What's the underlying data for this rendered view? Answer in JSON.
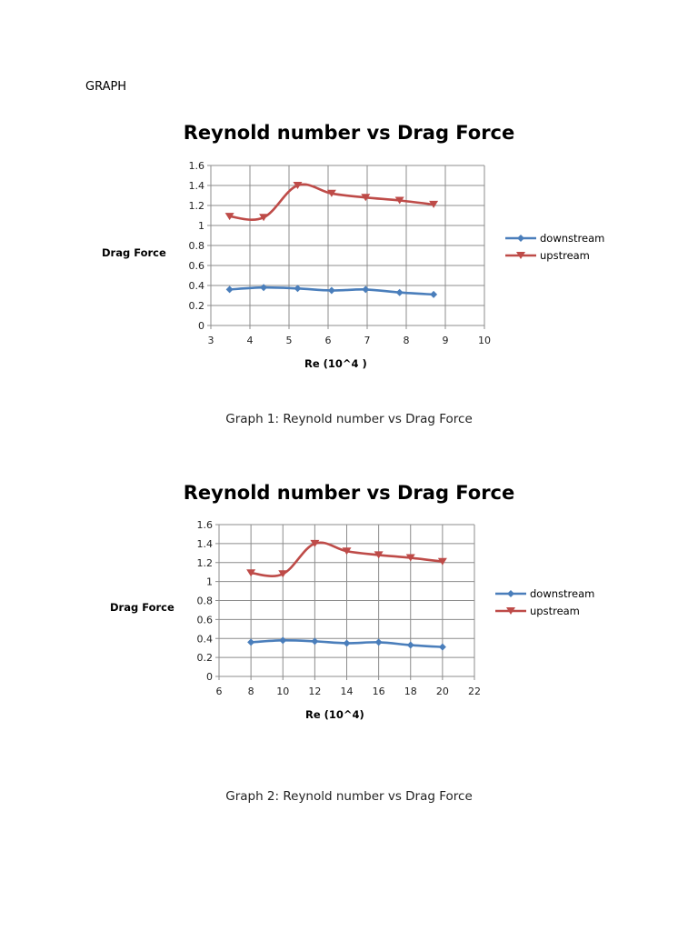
{
  "document": {
    "heading": "GRAPH"
  },
  "charts": [
    {
      "title": "Reynold number vs Drag Force",
      "ylabel": "Drag Force",
      "xlabel": "Re (10^4 )",
      "caption": "Graph 1: Reynold number vs Drag Force",
      "legend": [
        "downstream",
        "upstream"
      ]
    },
    {
      "title": "Reynold number vs Drag Force",
      "ylabel": "Drag Force",
      "xlabel": "Re (10^4)",
      "caption": "Graph 2: Reynold number vs Drag Force",
      "legend": [
        "downstream",
        "upstream"
      ]
    }
  ],
  "chart_data": [
    {
      "type": "line",
      "title": "Reynold number vs Drag Force",
      "xlabel": "Re (10^4 )",
      "ylabel": "Drag Force",
      "x": [
        3.48,
        4.35,
        5.22,
        6.09,
        6.96,
        7.83,
        8.7
      ],
      "series": [
        {
          "name": "downstream",
          "color": "#4a7ebb",
          "marker": "diamond",
          "values": [
            0.36,
            0.38,
            0.37,
            0.35,
            0.36,
            0.33,
            0.31
          ]
        },
        {
          "name": "upstream",
          "color": "#be4b48",
          "marker": "triangle-down",
          "values": [
            1.09,
            1.08,
            1.4,
            1.32,
            1.28,
            1.25,
            1.21
          ]
        }
      ],
      "xlim": [
        3,
        10
      ],
      "ylim": [
        0,
        1.6
      ],
      "xticks": [
        3,
        4,
        5,
        6,
        7,
        8,
        9,
        10
      ],
      "yticks": [
        0,
        0.2,
        0.4,
        0.6,
        0.8,
        1,
        1.2,
        1.4,
        1.6
      ],
      "grid": true,
      "legend_position": "right",
      "smoothed": true
    },
    {
      "type": "line",
      "title": "Reynold number vs Drag Force",
      "xlabel": "Re (10^4)",
      "ylabel": "Drag Force",
      "x": [
        8,
        10,
        12,
        14,
        16,
        18,
        20
      ],
      "series": [
        {
          "name": "downstream",
          "color": "#4a7ebb",
          "marker": "diamond",
          "values": [
            0.36,
            0.38,
            0.37,
            0.35,
            0.36,
            0.33,
            0.31
          ]
        },
        {
          "name": "upstream",
          "color": "#be4b48",
          "marker": "triangle-down",
          "values": [
            1.09,
            1.08,
            1.4,
            1.32,
            1.28,
            1.25,
            1.21
          ]
        }
      ],
      "xlim": [
        6,
        22
      ],
      "ylim": [
        0,
        1.6
      ],
      "xticks": [
        6,
        8,
        10,
        12,
        14,
        16,
        18,
        20,
        22
      ],
      "yticks": [
        0,
        0.2,
        0.4,
        0.6,
        0.8,
        1,
        1.2,
        1.4,
        1.6
      ],
      "grid": true,
      "legend_position": "right",
      "smoothed": true
    }
  ]
}
